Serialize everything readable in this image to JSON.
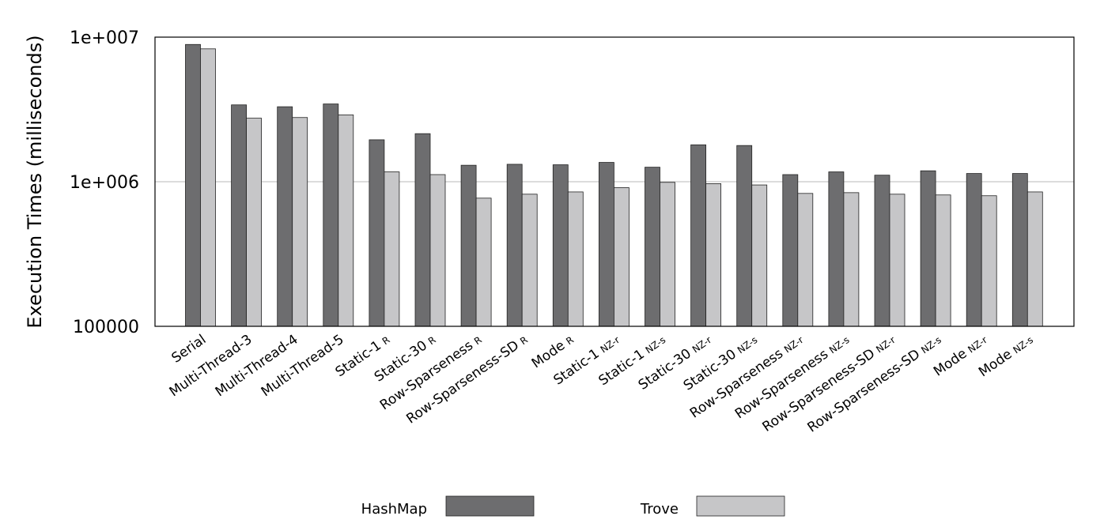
{
  "chart_data": {
    "type": "bar",
    "ylabel": "Execution Times (milliseconds)",
    "yscale": "log",
    "ylim": [
      100000,
      10000000
    ],
    "yticks": [
      {
        "value": 100000,
        "label": "100000"
      },
      {
        "value": 1000000,
        "label": "1e+006"
      },
      {
        "value": 10000000,
        "label": "1e+007"
      }
    ],
    "grid": "horizontal at 1e+006",
    "legend_position": "bottom",
    "categories": [
      {
        "name": "Serial",
        "sub": ""
      },
      {
        "name": "Multi-Thread-3",
        "sub": ""
      },
      {
        "name": "Multi-Thread-4",
        "sub": ""
      },
      {
        "name": "Multi-Thread-5",
        "sub": ""
      },
      {
        "name": "Static-1",
        "sub": "R"
      },
      {
        "name": "Static-30",
        "sub": "R"
      },
      {
        "name": "Row-Sparseness",
        "sub": "R"
      },
      {
        "name": "Row-Sparseness-SD",
        "sub": "R"
      },
      {
        "name": "Mode",
        "sub": "R"
      },
      {
        "name": "Static-1",
        "sub": "NZ-r"
      },
      {
        "name": "Static-1",
        "sub": "NZ-s"
      },
      {
        "name": "Static-30",
        "sub": "NZ-r"
      },
      {
        "name": "Static-30",
        "sub": "NZ-s"
      },
      {
        "name": "Row-Sparseness",
        "sub": "NZ-r"
      },
      {
        "name": "Row-Sparseness",
        "sub": "NZ-s"
      },
      {
        "name": "Row-Sparseness-SD",
        "sub": "NZ-r"
      },
      {
        "name": "Row-Sparseness-SD",
        "sub": "NZ-s"
      },
      {
        "name": "Mode",
        "sub": "NZ-r"
      },
      {
        "name": "Mode",
        "sub": "NZ-s"
      }
    ],
    "series": [
      {
        "name": "HashMap",
        "color": "#6d6d6f",
        "values": [
          8900000,
          3400000,
          3300000,
          3450000,
          1950000,
          2150000,
          1300000,
          1320000,
          1310000,
          1360000,
          1260000,
          1800000,
          1780000,
          1120000,
          1170000,
          1110000,
          1190000,
          1140000,
          1140000
        ]
      },
      {
        "name": "Trove",
        "color": "#c6c6c8",
        "values": [
          8300000,
          2750000,
          2780000,
          2900000,
          1170000,
          1120000,
          770000,
          820000,
          850000,
          910000,
          990000,
          970000,
          950000,
          830000,
          840000,
          820000,
          810000,
          800000,
          850000
        ]
      }
    ]
  }
}
